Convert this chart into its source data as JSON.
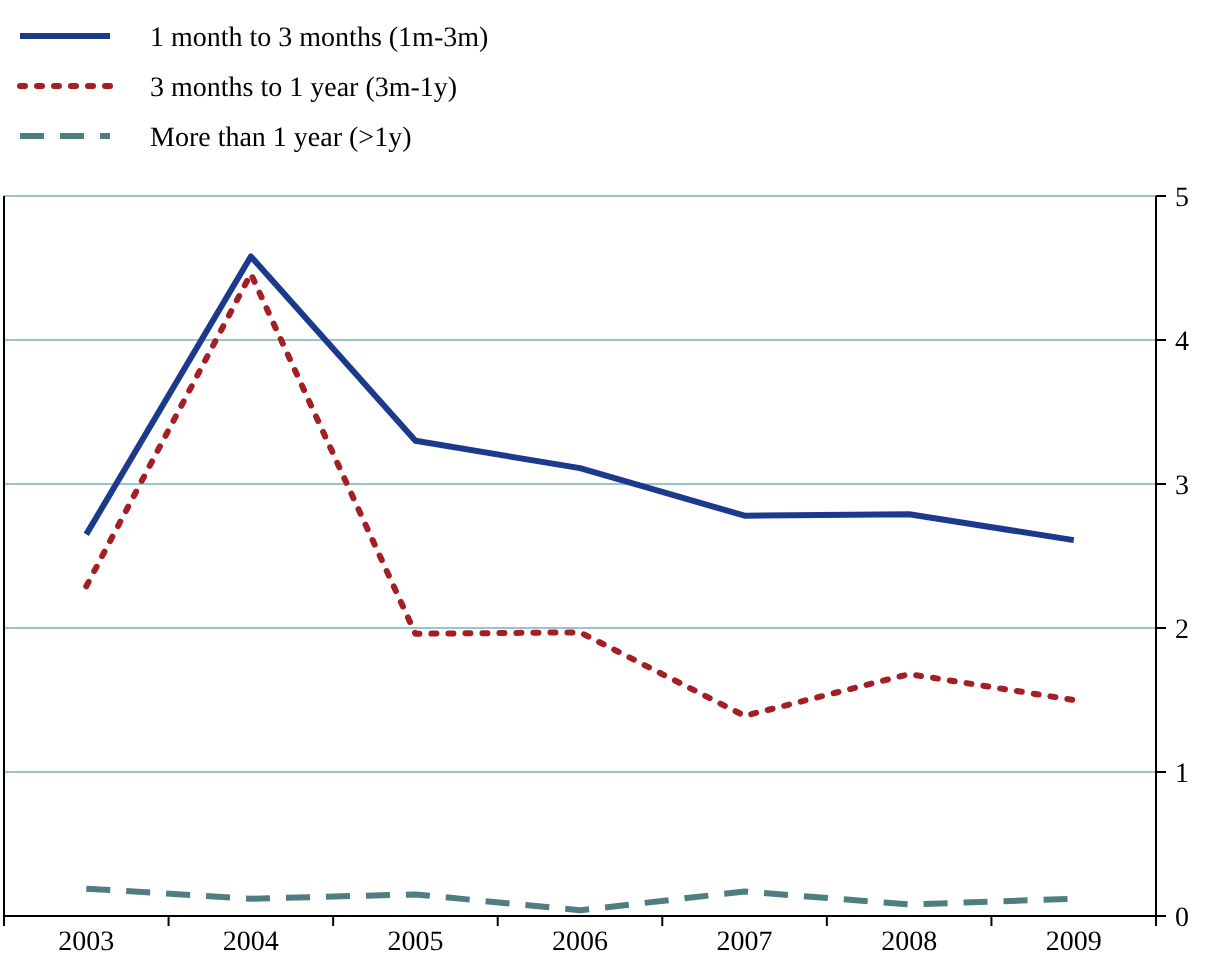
{
  "chart_data": {
    "type": "line",
    "categories": [
      "2003",
      "2004",
      "2005",
      "2006",
      "2007",
      "2008",
      "2009"
    ],
    "series": [
      {
        "name": "1 month to 3 months (1m-3m)",
        "color": "#1b3a8c",
        "line_style": "solid",
        "values": [
          2.65,
          4.58,
          3.3,
          3.11,
          2.78,
          2.79,
          2.61
        ]
      },
      {
        "name": "3 months to 1 year (3m-1y)",
        "color": "#a31f24",
        "line_style": "dotted",
        "values": [
          2.29,
          4.46,
          1.96,
          1.97,
          1.39,
          1.68,
          1.5
        ]
      },
      {
        "name": "More than 1 year (>1y)",
        "color": "#4e7d82",
        "line_style": "dashed",
        "values": [
          0.19,
          0.12,
          0.15,
          0.04,
          0.17,
          0.08,
          0.12
        ]
      }
    ],
    "ylim": [
      0,
      5
    ],
    "yticks": [
      0,
      1,
      2,
      3,
      4,
      5
    ],
    "grid": "y",
    "legend": "top left",
    "marker": "none"
  }
}
